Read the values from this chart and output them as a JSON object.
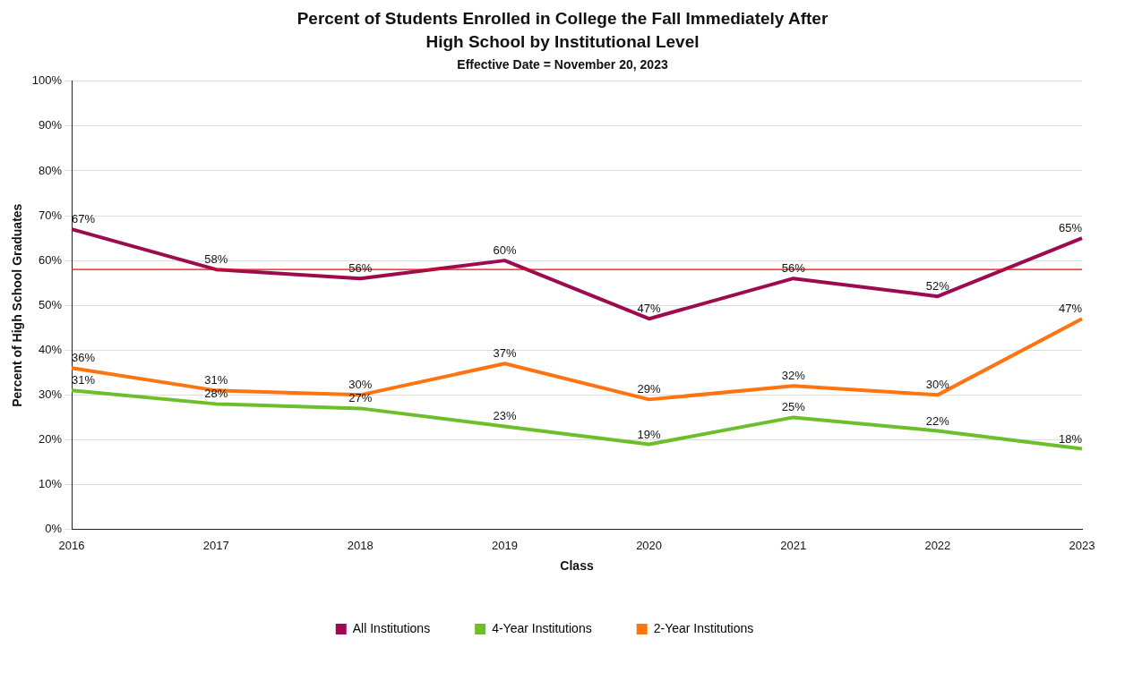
{
  "chart_data": {
    "type": "line",
    "title": "Percent of Students Enrolled in College the Fall Immediately After High School by Institutional Level",
    "subtitle": "Effective Date = November 20, 2023",
    "xlabel": "Class",
    "ylabel": "Percent of High School Graduates",
    "categories": [
      "2016",
      "2017",
      "2018",
      "2019",
      "2020",
      "2021",
      "2022",
      "2023"
    ],
    "series": [
      {
        "name": "All Institutions",
        "color": "#9c0a50",
        "values": [
          67,
          58,
          56,
          60,
          47,
          56,
          52,
          65
        ],
        "value_labels": [
          "67%",
          "58%",
          "56%",
          "60%",
          "47%",
          "56%",
          "52%",
          "65%"
        ]
      },
      {
        "name": "4-Year Institutions",
        "color": "#6cbf2a",
        "values": [
          31,
          28,
          27,
          23,
          19,
          25,
          22,
          18
        ],
        "value_labels": [
          "31%",
          "28%",
          "27%",
          "23%",
          "19%",
          "25%",
          "22%",
          "18%"
        ]
      },
      {
        "name": "2-Year Institutions",
        "color": "#ff7410",
        "values": [
          36,
          31,
          30,
          37,
          29,
          32,
          30,
          47
        ],
        "value_labels": [
          "36%",
          "31%",
          "30%",
          "37%",
          "29%",
          "32%",
          "30%",
          "47%"
        ]
      }
    ],
    "ylim": [
      0,
      100
    ],
    "yticks": [
      {
        "value": 0,
        "label": "0%"
      },
      {
        "value": 10,
        "label": "10%"
      },
      {
        "value": 20,
        "label": "20%"
      },
      {
        "value": 30,
        "label": "30%"
      },
      {
        "value": 40,
        "label": "40%"
      },
      {
        "value": 50,
        "label": "50%"
      },
      {
        "value": 60,
        "label": "60%"
      },
      {
        "value": 70,
        "label": "70%"
      },
      {
        "value": 80,
        "label": "80%"
      },
      {
        "value": 90,
        "label": "90%"
      },
      {
        "value": 100,
        "label": "100%"
      }
    ],
    "ref_lines": [
      {
        "axis": "y",
        "value": 58,
        "color": "#ff0000"
      }
    ],
    "grid": "y",
    "legend": "bottom",
    "marker": "none",
    "line_style": "solid"
  }
}
